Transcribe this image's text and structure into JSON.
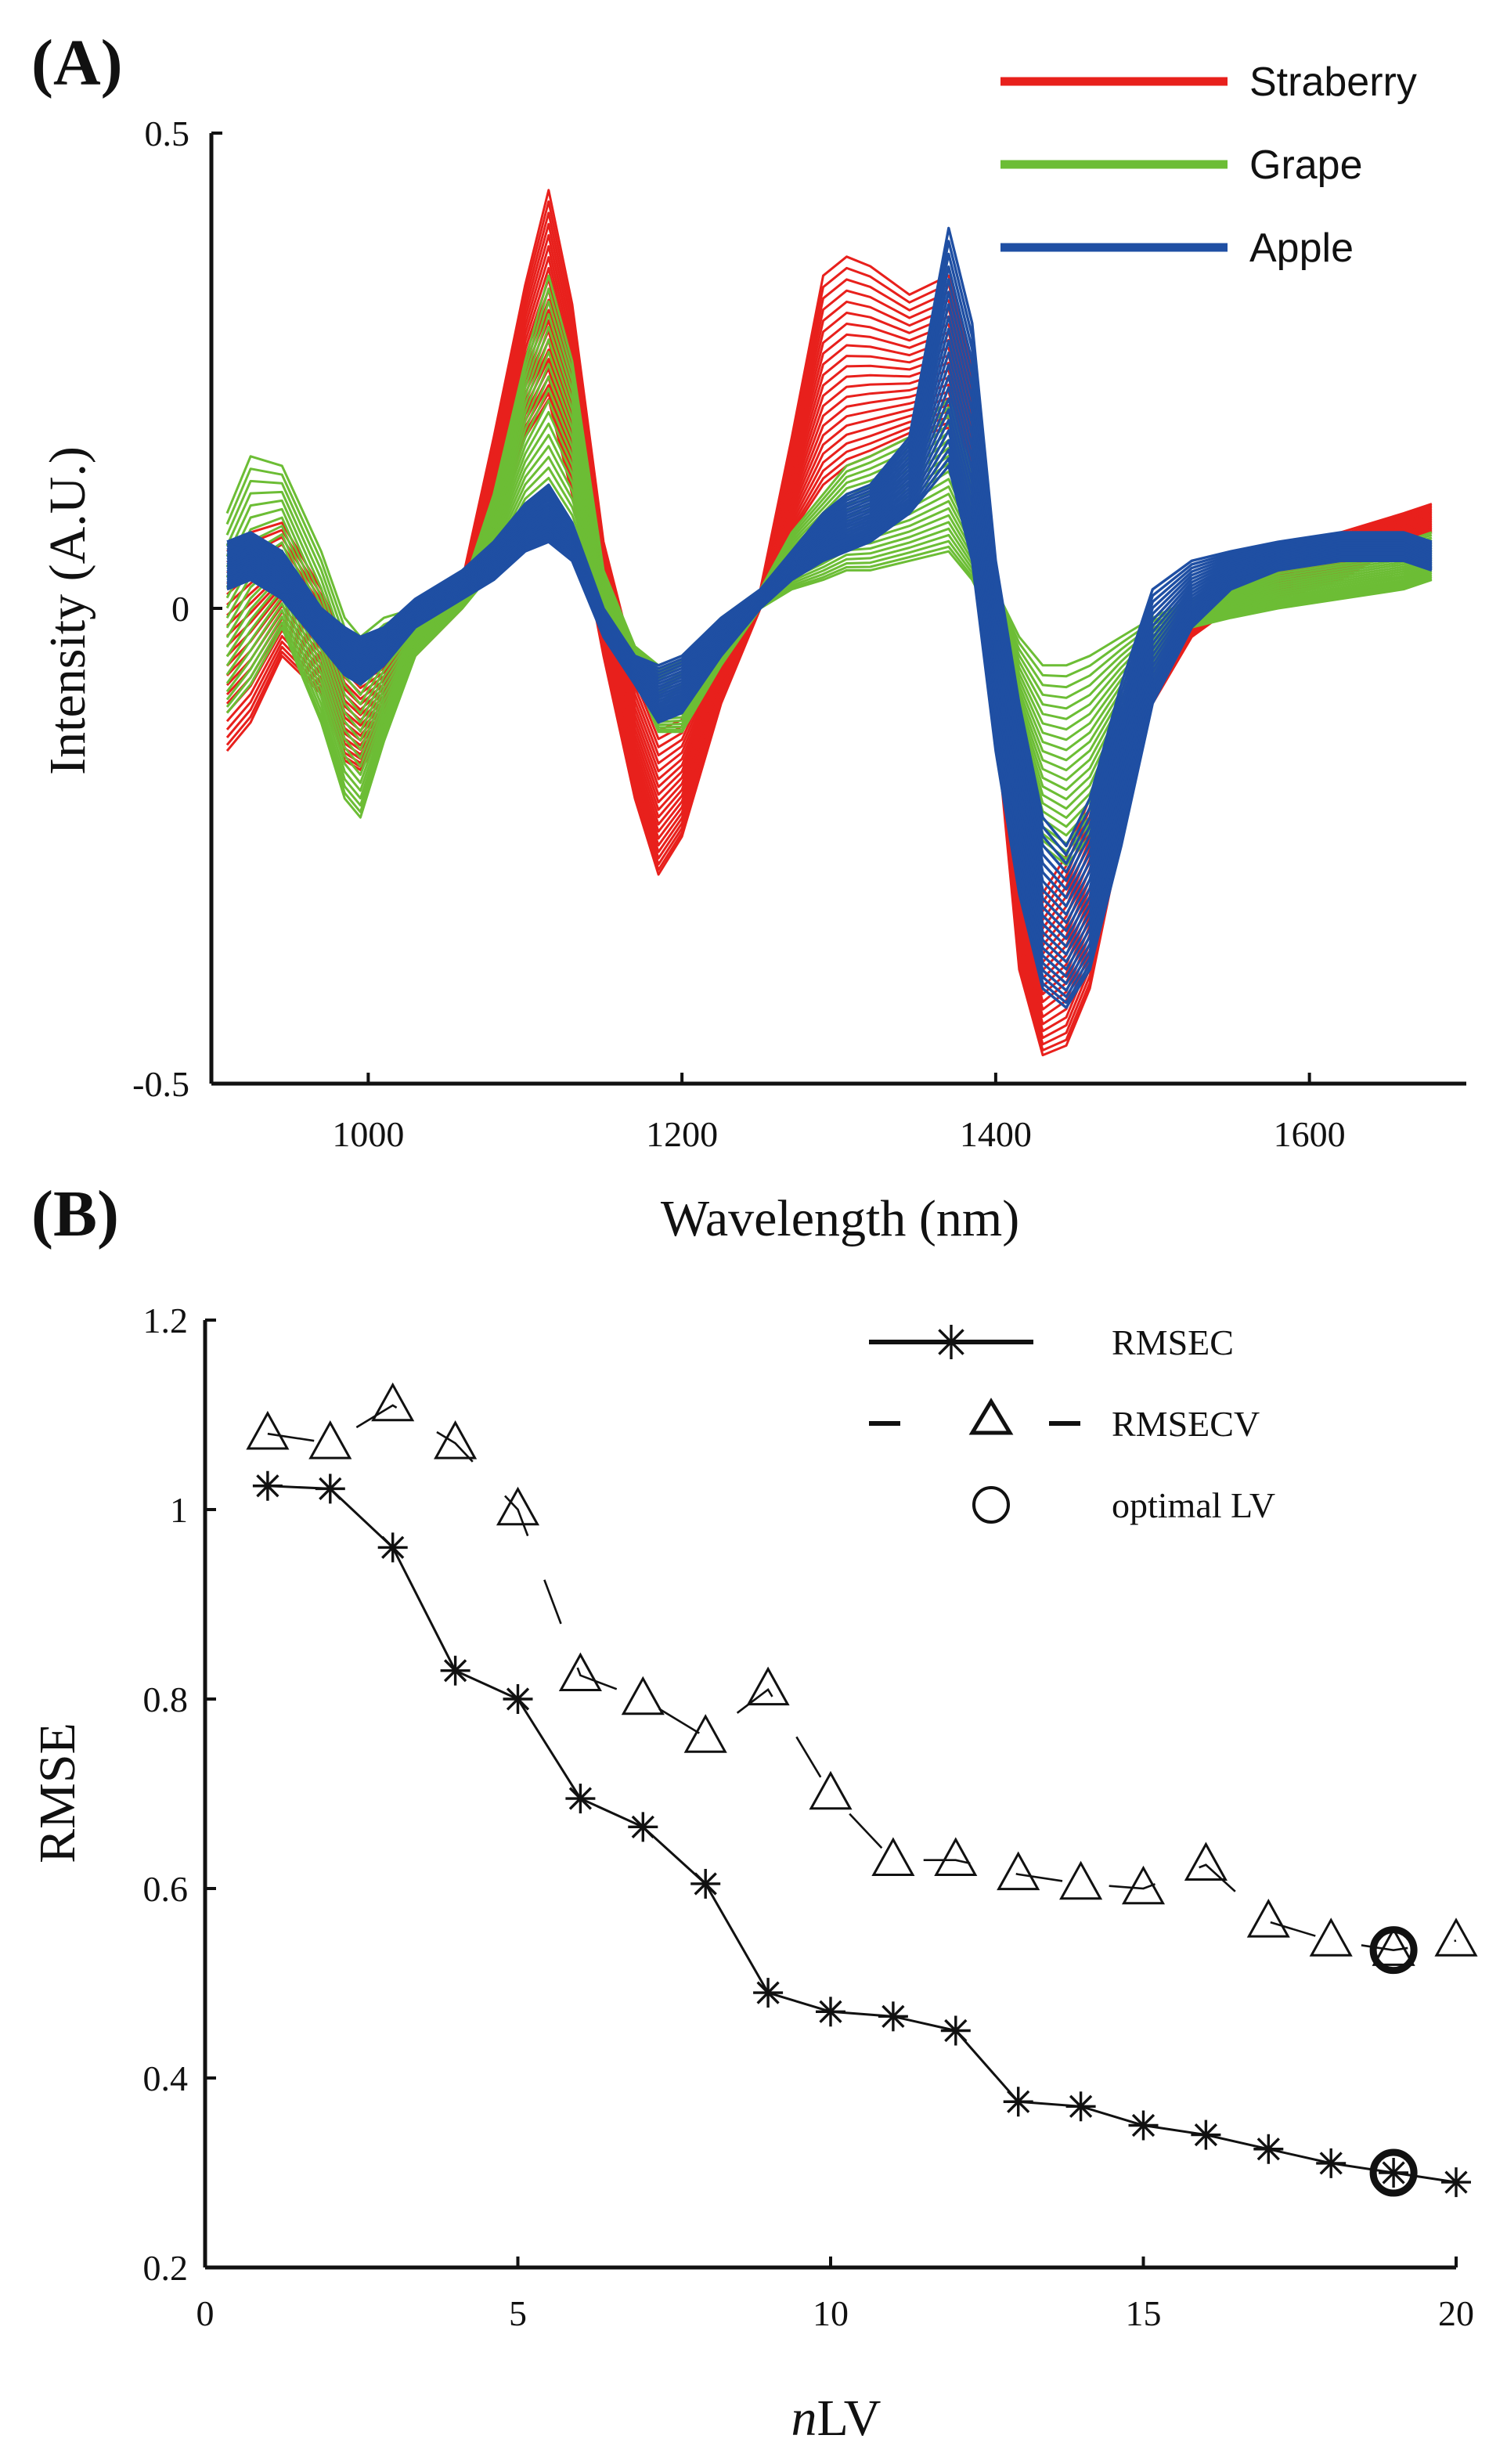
{
  "chart_data": [
    {
      "panel": "(A)",
      "type": "line",
      "xlabel": "Wavelength (nm)",
      "ylabel": "Intensity (A.U.)",
      "xlim": [
        900,
        1700
      ],
      "ylim": [
        -0.5,
        0.5
      ],
      "xticks": [
        1000,
        1200,
        1400,
        1600
      ],
      "yticks": [
        -0.5,
        0,
        0.5
      ],
      "ytick_labels": [
        "-0.5",
        "0",
        "0.5"
      ],
      "legend_position": "top-right",
      "colors": {
        "Straberry": "#e8201c",
        "Grape": "#6cbd35",
        "Apple": "#1f4fa3"
      },
      "series": [
        {
          "name": "Straberry",
          "x": [
            910,
            925,
            945,
            970,
            985,
            995,
            1010,
            1030,
            1060,
            1080,
            1100,
            1115,
            1130,
            1150,
            1170,
            1185,
            1200,
            1225,
            1250,
            1270,
            1290,
            1305,
            1320,
            1345,
            1370,
            1385,
            1400,
            1415,
            1430,
            1445,
            1460,
            1480,
            1500,
            1525,
            1550,
            1580,
            1620,
            1660,
            1678
          ],
          "low": [
            -0.15,
            -0.12,
            -0.05,
            -0.09,
            -0.16,
            -0.17,
            -0.13,
            -0.05,
            0.0,
            0.08,
            0.18,
            0.22,
            0.12,
            -0.05,
            -0.2,
            -0.28,
            -0.24,
            -0.1,
            0.0,
            0.08,
            0.13,
            0.15,
            0.16,
            0.18,
            0.19,
            0.1,
            -0.12,
            -0.38,
            -0.47,
            -0.46,
            -0.4,
            -0.24,
            -0.1,
            -0.03,
            0.0,
            0.01,
            0.03,
            0.07,
            0.08
          ],
          "high": [
            0.06,
            0.08,
            0.09,
            0.02,
            -0.04,
            -0.06,
            -0.05,
            -0.01,
            0.03,
            0.18,
            0.34,
            0.44,
            0.32,
            0.07,
            -0.06,
            -0.12,
            -0.11,
            -0.03,
            0.02,
            0.18,
            0.35,
            0.37,
            0.36,
            0.33,
            0.35,
            0.25,
            -0.02,
            -0.2,
            -0.3,
            -0.26,
            -0.2,
            -0.12,
            -0.06,
            -0.02,
            0.03,
            0.06,
            0.08,
            0.1,
            0.11
          ]
        },
        {
          "name": "Grape",
          "x": [
            910,
            925,
            945,
            970,
            985,
            995,
            1010,
            1030,
            1060,
            1080,
            1100,
            1115,
            1130,
            1150,
            1170,
            1185,
            1200,
            1225,
            1250,
            1270,
            1290,
            1305,
            1320,
            1345,
            1370,
            1385,
            1400,
            1415,
            1430,
            1445,
            1460,
            1480,
            1500,
            1525,
            1550,
            1580,
            1620,
            1660,
            1678
          ],
          "low": [
            -0.11,
            -0.08,
            -0.02,
            -0.12,
            -0.2,
            -0.22,
            -0.14,
            -0.05,
            0.0,
            0.04,
            0.09,
            0.1,
            0.07,
            0.0,
            -0.07,
            -0.13,
            -0.13,
            -0.06,
            0.0,
            0.02,
            0.03,
            0.04,
            0.04,
            0.05,
            0.06,
            0.03,
            -0.02,
            -0.15,
            -0.25,
            -0.27,
            -0.24,
            -0.15,
            -0.08,
            -0.02,
            -0.01,
            0.0,
            0.01,
            0.02,
            0.03
          ],
          "high": [
            0.1,
            0.16,
            0.15,
            0.06,
            -0.01,
            -0.03,
            -0.01,
            0.0,
            0.02,
            0.12,
            0.26,
            0.35,
            0.26,
            0.04,
            -0.04,
            -0.06,
            -0.05,
            -0.01,
            0.02,
            0.08,
            0.12,
            0.15,
            0.16,
            0.18,
            0.22,
            0.14,
            0.02,
            -0.03,
            -0.06,
            -0.06,
            -0.05,
            -0.03,
            -0.01,
            0.01,
            0.03,
            0.05,
            0.06,
            0.07,
            0.08
          ]
        },
        {
          "name": "Apple",
          "x": [
            910,
            925,
            945,
            970,
            985,
            995,
            1010,
            1030,
            1060,
            1080,
            1100,
            1115,
            1130,
            1150,
            1170,
            1185,
            1200,
            1225,
            1250,
            1270,
            1290,
            1305,
            1320,
            1345,
            1370,
            1385,
            1400,
            1415,
            1430,
            1445,
            1460,
            1480,
            1500,
            1525,
            1550,
            1580,
            1620,
            1660,
            1678
          ],
          "low": [
            0.02,
            0.03,
            0.01,
            -0.04,
            -0.07,
            -0.08,
            -0.06,
            -0.02,
            0.01,
            0.03,
            0.06,
            0.07,
            0.05,
            -0.03,
            -0.08,
            -0.12,
            -0.11,
            -0.05,
            0.0,
            0.03,
            0.05,
            0.06,
            0.07,
            0.1,
            0.15,
            0.05,
            -0.15,
            -0.3,
            -0.4,
            -0.42,
            -0.38,
            -0.25,
            -0.1,
            -0.02,
            0.02,
            0.04,
            0.05,
            0.05,
            0.04
          ],
          "high": [
            0.07,
            0.08,
            0.06,
            0.0,
            -0.02,
            -0.03,
            -0.02,
            0.01,
            0.04,
            0.07,
            0.11,
            0.13,
            0.09,
            0.0,
            -0.05,
            -0.06,
            -0.05,
            -0.01,
            0.02,
            0.06,
            0.1,
            0.12,
            0.13,
            0.18,
            0.4,
            0.3,
            0.05,
            -0.1,
            -0.22,
            -0.25,
            -0.2,
            -0.08,
            0.02,
            0.05,
            0.06,
            0.07,
            0.08,
            0.08,
            0.07
          ]
        }
      ]
    },
    {
      "panel": "(B)",
      "type": "line",
      "xlabel_italic": "n",
      "xlabel_rest": "LV",
      "ylabel": "RMSE",
      "xlim": [
        0,
        20
      ],
      "ylim": [
        0.2,
        1.2
      ],
      "xticks": [
        0,
        5,
        10,
        15,
        20
      ],
      "yticks": [
        0.2,
        0.4,
        0.6,
        0.8,
        1,
        1.2
      ],
      "ytick_labels": [
        "0.2",
        "0.4",
        "0.6",
        "0.8",
        "1",
        "1.2"
      ],
      "legend_position": "top-right",
      "legend": [
        "RMSEC",
        "RMSECV",
        "optimal LV"
      ],
      "series": [
        {
          "name": "RMSEC",
          "marker": "star",
          "line": "solid",
          "x": [
            1,
            2,
            3,
            4,
            5,
            6,
            7,
            8,
            9,
            10,
            11,
            12,
            13,
            14,
            15,
            16,
            17,
            18,
            19,
            20
          ],
          "values": [
            1.025,
            1.022,
            0.96,
            0.83,
            0.8,
            0.695,
            0.665,
            0.605,
            0.49,
            0.47,
            0.465,
            0.45,
            0.375,
            0.37,
            0.35,
            0.34,
            0.325,
            0.31,
            0.3,
            0.29
          ]
        },
        {
          "name": "RMSECV",
          "marker": "triangle",
          "line": "dashed",
          "x": [
            1,
            2,
            3,
            4,
            5,
            6,
            7,
            8,
            9,
            10,
            11,
            12,
            13,
            14,
            15,
            16,
            17,
            18,
            19,
            20
          ],
          "values": [
            1.08,
            1.07,
            1.11,
            1.07,
            1.0,
            0.825,
            0.8,
            0.76,
            0.81,
            0.7,
            0.63,
            0.63,
            0.615,
            0.605,
            0.6,
            0.625,
            0.565,
            0.545,
            0.535,
            0.545
          ]
        }
      ],
      "optimal_lv": {
        "x": 19,
        "rmsec": 0.3,
        "rmsecv": 0.535
      }
    }
  ]
}
